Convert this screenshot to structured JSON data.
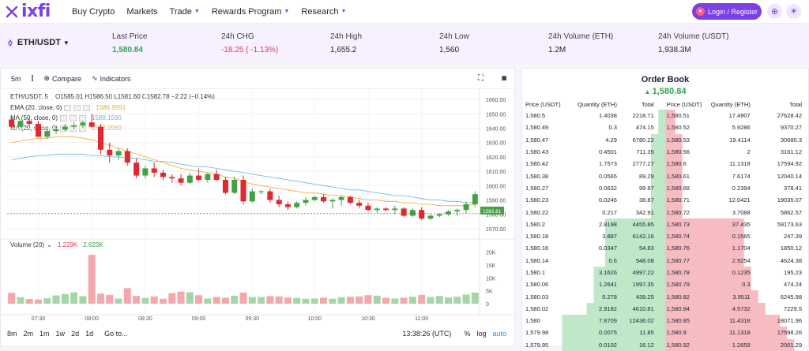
{
  "nav": {
    "brand": "ixfi",
    "links": [
      {
        "label": "Buy Crypto",
        "dropdown": false
      },
      {
        "label": "Markets",
        "dropdown": false
      },
      {
        "label": "Trade",
        "dropdown": true
      },
      {
        "label": "Rewards Program",
        "dropdown": true
      },
      {
        "label": "Research",
        "dropdown": true
      }
    ],
    "login_label": "Login / Register"
  },
  "ticker": {
    "pair": "ETH/USDT",
    "stats": [
      {
        "label": "Last Price",
        "value": "1,580.84",
        "tone": "green"
      },
      {
        "label": "24h CHG",
        "value": "-18.25 ( -1.13%)",
        "tone": "red"
      },
      {
        "label": "24h High",
        "value": "1,655.2",
        "tone": ""
      },
      {
        "label": "24h Low",
        "value": "1,560",
        "tone": ""
      },
      {
        "label": "24h Volume (ETH)",
        "value": "1.2M",
        "tone": ""
      },
      {
        "label": "24h Volume (USDT)",
        "value": "1,938.3M",
        "tone": ""
      }
    ]
  },
  "chart_toolbar": {
    "interval": "5m",
    "compare": "Compare",
    "indicators": "Indicators"
  },
  "chart_legend": {
    "title": "ETH/USDT, 5",
    "ohlc": "O1585.01  H1586.50  L1581.60  C1582.78  −2.22 (−0.14%)",
    "ema": {
      "label": "EMA (20, close, 0)",
      "value": "1586.9591",
      "color": "#f5a623"
    },
    "ma50": {
      "label": "MA (50, close, 0)",
      "value": "1588.1590",
      "color": "#5fb9e6"
    },
    "ma20": {
      "label": "MA (20, close, 0)",
      "value": "1588.0960",
      "color": "#f5a623"
    },
    "volume": {
      "label": "Volume (20)",
      "v1": "1.229K",
      "v2": "2.823K"
    }
  },
  "chart_data": {
    "type": "candlestick",
    "title": "ETH/USDT, 5",
    "xlabel": "",
    "ylabel": "",
    "ylim": [
      1565,
      1665
    ],
    "y_ticks": [
      "1660.00",
      "1650.00",
      "1640.00",
      "1630.00",
      "1620.00",
      "1610.00",
      "1600.00",
      "1590.00",
      "1580.00",
      "1570.00"
    ],
    "last_price_label": "1582.61",
    "volume_ticks": [
      "20K",
      "15K",
      "10K",
      "5K",
      "0"
    ],
    "x_ticks": [
      "07:30",
      "08:00",
      "08:30",
      "09:00",
      "09:30",
      "10:00",
      "10:30",
      "11:00"
    ],
    "candles": [
      [
        1646,
        1648,
        1640,
        1641
      ],
      [
        1641,
        1646,
        1640,
        1645
      ],
      [
        1645,
        1648,
        1642,
        1643
      ],
      [
        1643,
        1645,
        1634,
        1634
      ],
      [
        1634,
        1640,
        1633,
        1638
      ],
      [
        1638,
        1641,
        1636,
        1639
      ],
      [
        1639,
        1643,
        1638,
        1641
      ],
      [
        1641,
        1644,
        1639,
        1642
      ],
      [
        1642,
        1645,
        1640,
        1644
      ],
      [
        1644,
        1650,
        1640,
        1641
      ],
      [
        1641,
        1643,
        1622,
        1625
      ],
      [
        1625,
        1630,
        1616,
        1621
      ],
      [
        1621,
        1626,
        1618,
        1624
      ],
      [
        1624,
        1626,
        1614,
        1616
      ],
      [
        1616,
        1619,
        1605,
        1607
      ],
      [
        1607,
        1614,
        1605,
        1612
      ],
      [
        1612,
        1616,
        1606,
        1609
      ],
      [
        1609,
        1611,
        1604,
        1606
      ],
      [
        1606,
        1608,
        1602,
        1605
      ],
      [
        1605,
        1608,
        1600,
        1602
      ],
      [
        1602,
        1609,
        1601,
        1607
      ],
      [
        1607,
        1612,
        1603,
        1604
      ],
      [
        1604,
        1609,
        1602,
        1608
      ],
      [
        1608,
        1611,
        1603,
        1604
      ],
      [
        1604,
        1606,
        1594,
        1595
      ],
      [
        1595,
        1606,
        1594,
        1604
      ],
      [
        1604,
        1607,
        1587,
        1589
      ],
      [
        1589,
        1598,
        1588,
        1596
      ],
      [
        1596,
        1597,
        1594,
        1596
      ],
      [
        1596,
        1598,
        1588,
        1590
      ],
      [
        1590,
        1593,
        1585,
        1587
      ],
      [
        1587,
        1589,
        1583,
        1585
      ],
      [
        1585,
        1589,
        1584,
        1588
      ],
      [
        1588,
        1592,
        1586,
        1590
      ],
      [
        1590,
        1593,
        1589,
        1592
      ],
      [
        1592,
        1594,
        1588,
        1589
      ],
      [
        1589,
        1591,
        1584,
        1590
      ],
      [
        1590,
        1593,
        1586,
        1592
      ],
      [
        1592,
        1593,
        1587,
        1588
      ],
      [
        1588,
        1590,
        1584,
        1586
      ],
      [
        1586,
        1588,
        1582,
        1583
      ],
      [
        1583,
        1585,
        1581,
        1584
      ],
      [
        1584,
        1585,
        1582,
        1583
      ],
      [
        1583,
        1586,
        1580,
        1584
      ],
      [
        1584,
        1585,
        1578,
        1579
      ],
      [
        1579,
        1584,
        1578,
        1583
      ],
      [
        1583,
        1585,
        1576,
        1577
      ],
      [
        1577,
        1580,
        1576,
        1579
      ],
      [
        1579,
        1581,
        1578,
        1580
      ],
      [
        1580,
        1583,
        1579,
        1582
      ],
      [
        1582,
        1584,
        1579,
        1583
      ],
      [
        1583,
        1589,
        1581,
        1587
      ],
      [
        1587,
        1596,
        1585,
        1594
      ]
    ],
    "volumes": [
      4200,
      2500,
      1800,
      1600,
      2100,
      3200,
      3700,
      4400,
      2900,
      18900,
      3900,
      3400,
      2000,
      6000,
      3000,
      2200,
      2800,
      1900,
      4100,
      4700,
      4400,
      3300,
      2000,
      2600,
      2300,
      3100,
      4300,
      2600,
      2600,
      2900,
      2800,
      2400,
      2200,
      1900,
      2000,
      2300,
      1900,
      2500,
      2700,
      2800,
      3300,
      3100,
      2300,
      2000,
      2300,
      2700,
      3400,
      2600,
      3000,
      2400,
      2700,
      3500,
      4300
    ],
    "ema20": [
      1630,
      1631,
      1632,
      1633,
      1633,
      1634,
      1634,
      1634,
      1633,
      1632,
      1630,
      1628,
      1626,
      1624,
      1622,
      1620,
      1618,
      1616,
      1614,
      1612,
      1611,
      1610,
      1609,
      1608,
      1606,
      1605,
      1603,
      1601,
      1600,
      1599,
      1598,
      1597,
      1596,
      1595,
      1595,
      1594,
      1593,
      1593,
      1592,
      1591,
      1590,
      1590,
      1589,
      1589,
      1588,
      1588,
      1587,
      1587,
      1586,
      1586,
      1586,
      1586,
      1587
    ],
    "ma50": [
      1618,
      1619,
      1620,
      1621,
      1621,
      1622,
      1622,
      1622,
      1622,
      1621,
      1621,
      1620,
      1620,
      1619,
      1619,
      1618,
      1617,
      1617,
      1616,
      1615,
      1614,
      1613,
      1613,
      1612,
      1611,
      1610,
      1609,
      1608,
      1607,
      1606,
      1605,
      1604,
      1603,
      1602,
      1601,
      1600,
      1599,
      1598,
      1597,
      1597,
      1596,
      1595,
      1594,
      1593,
      1593,
      1592,
      1591,
      1590,
      1590,
      1589,
      1589,
      1588,
      1588
    ]
  },
  "chart_bottom": {
    "ranges": [
      "8m",
      "2m",
      "1m",
      "1w",
      "2d",
      "1d"
    ],
    "goto": "Go to...",
    "clock": "13:38:26 (UTC)",
    "pct": "%",
    "log": "log",
    "auto": "auto"
  },
  "order_book": {
    "title": "Order Book",
    "last": "1,580.84",
    "headers": [
      "Price (USDT)",
      "Quantity (ETH)",
      "Total",
      "Price (USDT)",
      "Quantity (ETH)",
      "Total"
    ],
    "bids": [
      [
        "1,580.5",
        "1.4038",
        "2218.71",
        0.05
      ],
      [
        "1,580.49",
        "0.3",
        "474.15",
        0.05
      ],
      [
        "1,580.47",
        "4.29",
        "6780.22",
        0.1
      ],
      [
        "1,580.43",
        "0.4501",
        "711.35",
        0.1
      ],
      [
        "1,580.42",
        "1.7573",
        "2777.27",
        0.1
      ],
      [
        "1,580.38",
        "0.0565",
        "89.29",
        0.1
      ],
      [
        "1,580.27",
        "0.0632",
        "99.87",
        0.1
      ],
      [
        "1,580.23",
        "0.0246",
        "38.87",
        0.1
      ],
      [
        "1,580.22",
        "0.217",
        "342.91",
        0.1
      ],
      [
        "1,580.2",
        "2.8198",
        "4455.85",
        0.42
      ],
      [
        "1,580.18",
        "3.887",
        "6142.16",
        0.42
      ],
      [
        "1,580.16",
        "0.0347",
        "54.83",
        0.42
      ],
      [
        "1,580.14",
        "0.6",
        "948.08",
        0.42
      ],
      [
        "1,580.1",
        "3.1626",
        "4997.22",
        0.5
      ],
      [
        "1,580.06",
        "1.2641",
        "1997.35",
        0.5
      ],
      [
        "1,580.03",
        "0.278",
        "439.25",
        0.5
      ],
      [
        "1,580.02",
        "2.9182",
        "4610.81",
        0.55
      ],
      [
        "1,580",
        "7.8709",
        "12436.02",
        0.72
      ],
      [
        "1,579.98",
        "0.0075",
        "11.85",
        0.72
      ],
      [
        "1,579.95",
        "0.0102",
        "16.12",
        0.72
      ]
    ],
    "asks": [
      [
        "1,580.51",
        "17.4807",
        "27628.42",
        0.07
      ],
      [
        "1,580.52",
        "5.9286",
        "9370.27",
        0.07
      ],
      [
        "1,580.53",
        "19.4114",
        "30680.3",
        0.12
      ],
      [
        "1,580.56",
        "2",
        "3161.12",
        0.12
      ],
      [
        "1,580.6",
        "11.1318",
        "17594.92",
        0.12
      ],
      [
        "1,580.61",
        "7.6174",
        "12040.14",
        0.12
      ],
      [
        "1,580.68",
        "0.2394",
        "378.41",
        0.12
      ],
      [
        "1,580.71",
        "12.0421",
        "19035.07",
        0.12
      ],
      [
        "1,580.72",
        "3.7088",
        "5862.57",
        0.12
      ],
      [
        "1,580.73",
        "37.435",
        "59173.63",
        0.55
      ],
      [
        "1,580.74",
        "0.1565",
        "247.39",
        0.55
      ],
      [
        "1,580.76",
        "1.1704",
        "1850.12",
        0.55
      ],
      [
        "1,580.77",
        "2.9254",
        "4624.38",
        0.55
      ],
      [
        "1,580.78",
        "0.1235",
        "195.23",
        0.6
      ],
      [
        "1,580.79",
        "0.3",
        "474.24",
        0.6
      ],
      [
        "1,580.82",
        "3.9511",
        "6245.98",
        0.65
      ],
      [
        "1,580.84",
        "4.5732",
        "7229.5",
        0.7
      ],
      [
        "1,580.85",
        "11.4318",
        "18071.96",
        0.8
      ],
      [
        "1,580.9",
        "11.1318",
        "17598.26",
        0.85
      ],
      [
        "1,580.92",
        "1.2659",
        "2001.29",
        0.9
      ]
    ]
  }
}
